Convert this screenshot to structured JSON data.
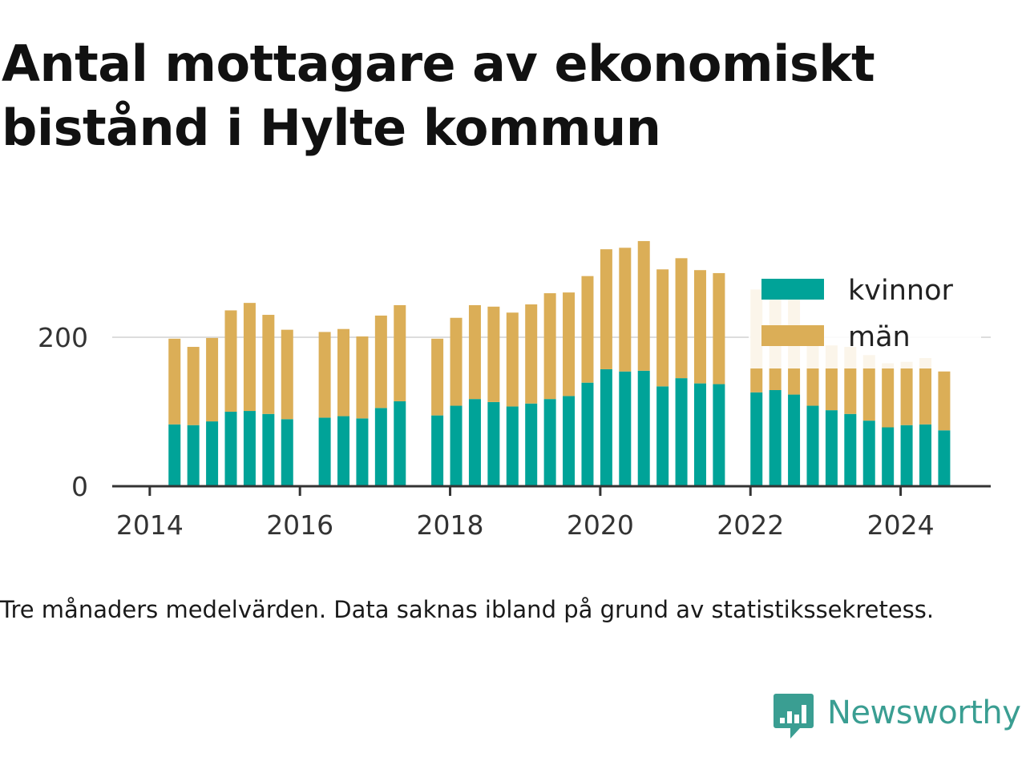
{
  "title": "Antal mottagare av ekonomiskt bistånd i Hylte kommun",
  "caption": "Tre månaders medelvärden. Data saknas ibland på grund av statistikssekretess.",
  "brand": {
    "name": "Newsworthy",
    "icon": "newsworthy-logo-icon",
    "color": "#3a9e92"
  },
  "chart_data": {
    "type": "bar",
    "stacked": true,
    "x_unit": "year (decimal)",
    "x": [
      2014.33,
      2014.58,
      2014.83,
      2015.08,
      2015.33,
      2015.58,
      2015.83,
      2016.33,
      2016.58,
      2016.83,
      2017.08,
      2017.33,
      2017.83,
      2018.08,
      2018.33,
      2018.58,
      2018.83,
      2019.08,
      2019.33,
      2019.58,
      2019.83,
      2020.08,
      2020.33,
      2020.58,
      2020.83,
      2021.08,
      2021.33,
      2021.58,
      2022.08,
      2022.33,
      2022.58,
      2022.83,
      2023.08,
      2023.33,
      2023.58,
      2023.83,
      2024.08,
      2024.33,
      2024.58
    ],
    "series": [
      {
        "name": "kvinnor",
        "color": "#00a398",
        "values": [
          83,
          82,
          87,
          100,
          101,
          97,
          90,
          92,
          94,
          91,
          105,
          114,
          95,
          108,
          117,
          113,
          107,
          111,
          117,
          121,
          139,
          157,
          154,
          155,
          134,
          145,
          138,
          137,
          126,
          129,
          123,
          108,
          102,
          97,
          88,
          79,
          82,
          83,
          75
        ]
      },
      {
        "name": "män",
        "color": "#dbae57",
        "values": [
          115,
          105,
          112,
          136,
          145,
          133,
          120,
          115,
          117,
          110,
          124,
          129,
          103,
          118,
          126,
          128,
          126,
          133,
          142,
          139,
          143,
          161,
          166,
          174,
          157,
          161,
          152,
          149,
          138,
          131,
          133,
          97,
          87,
          90,
          88,
          86,
          85,
          89,
          79
        ]
      }
    ],
    "xlim": [
      2013.5,
      2025.2
    ],
    "ylim": [
      0,
      330
    ],
    "x_ticks": [
      "2014",
      "2016",
      "2018",
      "2020",
      "2022",
      "2024"
    ],
    "y_ticks": [
      "0",
      "200"
    ],
    "grid": "horizontal",
    "legend": {
      "position": "top-right",
      "entries": [
        "kvinnor",
        "män"
      ]
    }
  }
}
